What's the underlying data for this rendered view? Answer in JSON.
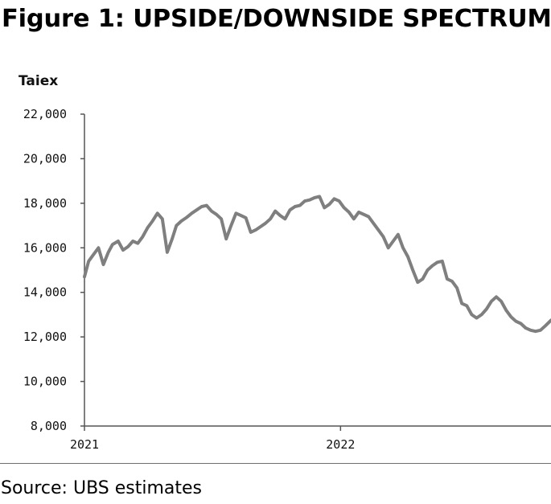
{
  "page": {
    "title": "Figure 1: UPSIDE/DOWNSIDE SPECTRUM",
    "source": "Source: UBS estimates"
  },
  "chart_data": {
    "type": "line",
    "title": "",
    "ylabel": "Taiex",
    "xlabel": "",
    "ylim": [
      8000,
      22000
    ],
    "y_ticks": [
      {
        "value": 8000,
        "label": "8,000"
      },
      {
        "value": 10000,
        "label": "10,000"
      },
      {
        "value": 12000,
        "label": "12,000"
      },
      {
        "value": 14000,
        "label": "14,000"
      },
      {
        "value": 16000,
        "label": "16,000"
      },
      {
        "value": 18000,
        "label": "18,000"
      },
      {
        "value": 20000,
        "label": "20,000"
      },
      {
        "value": 22000,
        "label": "22,000"
      }
    ],
    "x_range": [
      "2021-01-01",
      "2022-10-28"
    ],
    "x_ticks": [
      {
        "value": "2021-01-01",
        "label": "2021"
      },
      {
        "value": "2022-01-01",
        "label": "2022"
      }
    ],
    "grid": false,
    "line_color": "#7f7f7f",
    "series": [
      {
        "name": "",
        "x": [
          "2021-01-01",
          "2021-01-07",
          "2021-01-14",
          "2021-01-21",
          "2021-01-28",
          "2021-02-04",
          "2021-02-10",
          "2021-02-18",
          "2021-02-25",
          "2021-03-04",
          "2021-03-11",
          "2021-03-18",
          "2021-03-25",
          "2021-04-01",
          "2021-04-08",
          "2021-04-15",
          "2021-04-22",
          "2021-04-29",
          "2021-05-06",
          "2021-05-12",
          "2021-05-19",
          "2021-05-26",
          "2021-06-03",
          "2021-06-10",
          "2021-06-17",
          "2021-06-24",
          "2021-07-01",
          "2021-07-08",
          "2021-07-15",
          "2021-07-22",
          "2021-07-29",
          "2021-08-05",
          "2021-08-12",
          "2021-08-19",
          "2021-08-26",
          "2021-09-02",
          "2021-09-09",
          "2021-09-16",
          "2021-09-23",
          "2021-09-30",
          "2021-10-07",
          "2021-10-14",
          "2021-10-21",
          "2021-10-28",
          "2021-11-04",
          "2021-11-11",
          "2021-11-18",
          "2021-11-25",
          "2021-12-02",
          "2021-12-09",
          "2021-12-16",
          "2021-12-23",
          "2021-12-30",
          "2022-01-06",
          "2022-01-13",
          "2022-01-20",
          "2022-01-27",
          "2022-02-10",
          "2022-02-17",
          "2022-02-24",
          "2022-03-03",
          "2022-03-10",
          "2022-03-17",
          "2022-03-24",
          "2022-03-31",
          "2022-04-07",
          "2022-04-14",
          "2022-04-21",
          "2022-04-28",
          "2022-05-05",
          "2022-05-12",
          "2022-05-19",
          "2022-05-26",
          "2022-06-02",
          "2022-06-09",
          "2022-06-16",
          "2022-06-23",
          "2022-06-30",
          "2022-07-07",
          "2022-07-14",
          "2022-07-21",
          "2022-07-28",
          "2022-08-04",
          "2022-08-11",
          "2022-08-18",
          "2022-08-25",
          "2022-09-01",
          "2022-09-08",
          "2022-09-15",
          "2022-09-22",
          "2022-09-29",
          "2022-10-06",
          "2022-10-13",
          "2022-10-20",
          "2022-10-28"
        ],
        "values": [
          14700,
          15400,
          15700,
          16000,
          15250,
          15800,
          16150,
          16300,
          15900,
          16050,
          16300,
          16200,
          16500,
          16900,
          17200,
          17550,
          17300,
          15800,
          16400,
          17000,
          17200,
          17350,
          17550,
          17700,
          17850,
          17900,
          17650,
          17500,
          17300,
          16400,
          17000,
          17550,
          17450,
          17350,
          16700,
          16800,
          16950,
          17100,
          17300,
          17650,
          17450,
          17300,
          17700,
          17850,
          17900,
          18100,
          18150,
          18250,
          18300,
          17800,
          17950,
          18200,
          18100,
          17800,
          17600,
          17300,
          17600,
          17400,
          17100,
          16800,
          16500,
          16000,
          16300,
          16600,
          16000,
          15600,
          15000,
          14450,
          14600,
          15000,
          15200,
          15350,
          15400,
          14600,
          14500,
          14200,
          13500,
          13400,
          13000,
          12850,
          13000,
          13250,
          13600,
          13800,
          13600,
          13200,
          12900,
          12700,
          12600,
          12400,
          12300,
          12250,
          12300,
          12500,
          12750
        ]
      }
    ]
  }
}
